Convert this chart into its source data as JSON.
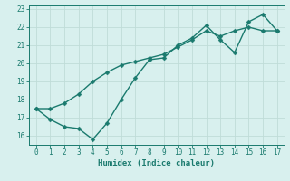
{
  "line1_x": [
    0,
    1,
    2,
    3,
    4,
    5,
    6,
    7,
    8,
    9,
    10,
    11,
    12,
    13,
    14,
    15,
    16,
    17
  ],
  "line1_y": [
    17.5,
    17.5,
    17.8,
    18.3,
    19.0,
    19.5,
    19.9,
    20.1,
    20.3,
    20.5,
    20.9,
    21.3,
    21.8,
    21.5,
    21.8,
    22.0,
    21.8,
    21.8
  ],
  "line2_x": [
    0,
    1,
    2,
    3,
    4,
    5,
    6,
    7,
    8,
    9,
    10,
    11,
    12,
    13,
    14,
    15,
    16,
    17
  ],
  "line2_y": [
    17.5,
    16.9,
    16.5,
    16.4,
    15.8,
    16.7,
    18.0,
    19.2,
    20.2,
    20.3,
    21.0,
    21.4,
    22.1,
    21.3,
    20.6,
    22.3,
    22.7,
    21.8
  ],
  "line_color": "#1a7a6e",
  "bg_color": "#d8f0ee",
  "grid_color": "#c0dcd8",
  "xlabel": "Humidex (Indice chaleur)",
  "ylim": [
    15.5,
    23.2
  ],
  "xlim": [
    -0.5,
    17.5
  ],
  "yticks": [
    16,
    17,
    18,
    19,
    20,
    21,
    22,
    23
  ],
  "xticks": [
    0,
    1,
    2,
    3,
    4,
    5,
    6,
    7,
    8,
    9,
    10,
    11,
    12,
    13,
    14,
    15,
    16,
    17
  ],
  "marker_size": 2.5,
  "line_width": 1.0
}
